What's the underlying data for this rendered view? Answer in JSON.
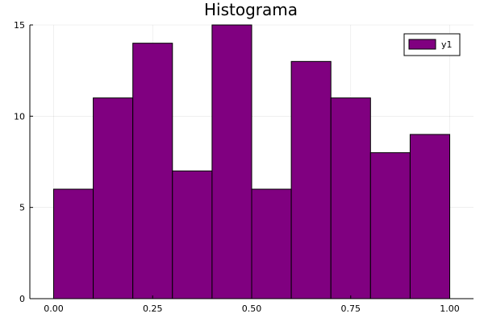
{
  "chart_data": {
    "type": "bar",
    "title": "Histograma",
    "xlabel": "",
    "ylabel": "",
    "bins": [
      {
        "start": 0.0,
        "end": 0.1,
        "count": 6
      },
      {
        "start": 0.1,
        "end": 0.2,
        "count": 11
      },
      {
        "start": 0.2,
        "end": 0.3,
        "count": 14
      },
      {
        "start": 0.3,
        "end": 0.4,
        "count": 7
      },
      {
        "start": 0.4,
        "end": 0.5,
        "count": 15
      },
      {
        "start": 0.5,
        "end": 0.6,
        "count": 6
      },
      {
        "start": 0.6,
        "end": 0.7,
        "count": 13
      },
      {
        "start": 0.7,
        "end": 0.8,
        "count": 11
      },
      {
        "start": 0.8,
        "end": 0.9,
        "count": 8
      },
      {
        "start": 0.9,
        "end": 1.0,
        "count": 9
      }
    ],
    "series": [
      {
        "name": "y1",
        "color": "#800080"
      }
    ],
    "xlim": [
      -0.06,
      1.06
    ],
    "ylim": [
      0,
      15
    ],
    "xticks": [
      {
        "value": 0.0,
        "label": "0.00"
      },
      {
        "value": 0.25,
        "label": "0.25"
      },
      {
        "value": 0.5,
        "label": "0.50"
      },
      {
        "value": 0.75,
        "label": "0.75"
      },
      {
        "value": 1.0,
        "label": "1.00"
      }
    ],
    "yticks": [
      {
        "value": 0,
        "label": "0"
      },
      {
        "value": 5,
        "label": "5"
      },
      {
        "value": 10,
        "label": "10"
      },
      {
        "value": 15,
        "label": "15"
      }
    ],
    "grid": true,
    "legend_position": "top-right"
  }
}
